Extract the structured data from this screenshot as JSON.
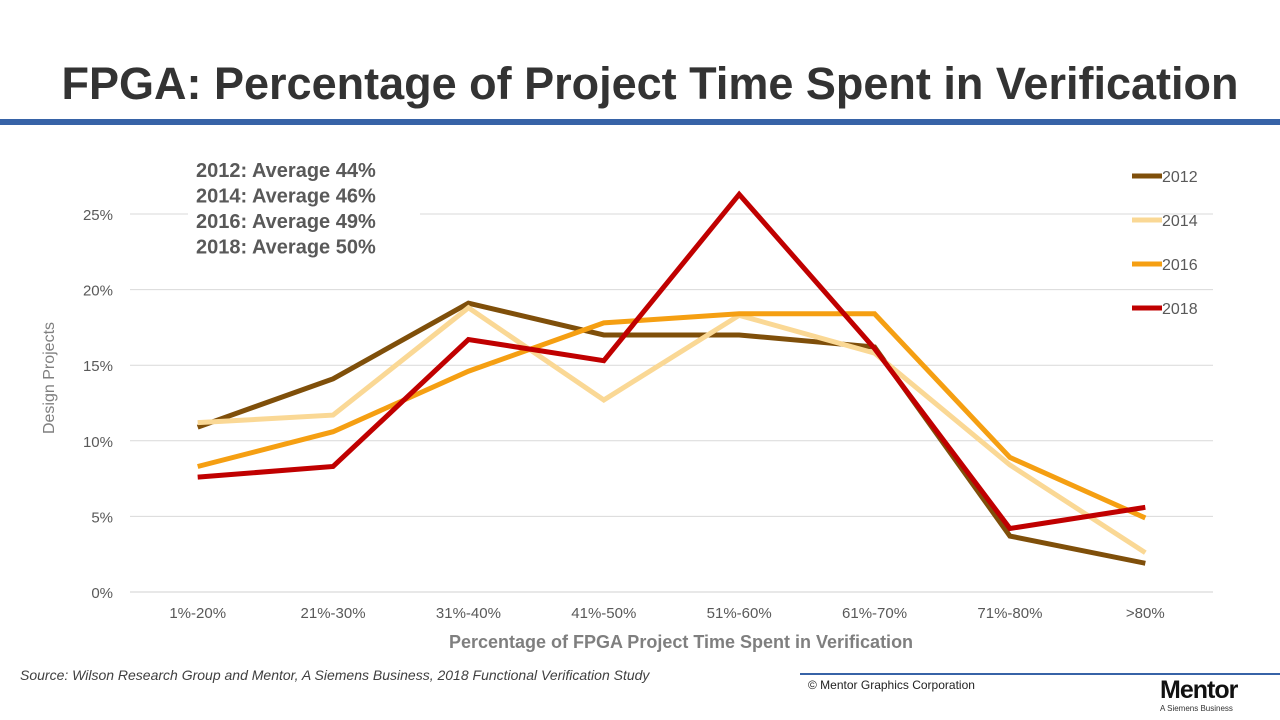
{
  "title": "FPGA: Percentage of Project Time Spent in Verification",
  "chart_data": {
    "type": "line",
    "categories": [
      "1%-20%",
      "21%-30%",
      "31%-40%",
      "41%-50%",
      "51%-60%",
      "61%-70%",
      "71%-80%",
      ">80%"
    ],
    "series": [
      {
        "name": "2012",
        "color": "#7f4f0a",
        "values": [
          10.9,
          14.1,
          19.1,
          17.0,
          17.0,
          16.2,
          3.7,
          1.9
        ]
      },
      {
        "name": "2014",
        "color": "#fad895",
        "values": [
          11.2,
          11.7,
          18.8,
          12.7,
          18.3,
          15.8,
          8.4,
          2.6
        ]
      },
      {
        "name": "2016",
        "color": "#f59f12",
        "values": [
          8.3,
          10.6,
          14.6,
          17.8,
          18.4,
          18.4,
          8.9,
          4.9
        ]
      },
      {
        "name": "2018",
        "color": "#c00000",
        "values": [
          7.6,
          8.3,
          16.7,
          15.3,
          26.3,
          16.1,
          4.2,
          5.6
        ]
      }
    ],
    "ylim": [
      0,
      25
    ],
    "yticks": [
      "0%",
      "5%",
      "10%",
      "15%",
      "20%",
      "25%"
    ],
    "xlabel": "Percentage of FPGA Project Time Spent in Verification",
    "ylabel": "Design Projects",
    "grid": true,
    "legend_position": "right",
    "annotations": [
      "2012:  Average  44%",
      "2014:  Average  46%",
      "2016:  Average  49%",
      "2018:  Average  50%"
    ]
  },
  "source": "Source:  Wilson Research Group and Mentor, A Siemens Business, 2018 Functional Verification Study",
  "copyright": "© Mentor Graphics Corporation",
  "logo": {
    "word": "Mentor",
    "tagline": "A Siemens Business"
  }
}
